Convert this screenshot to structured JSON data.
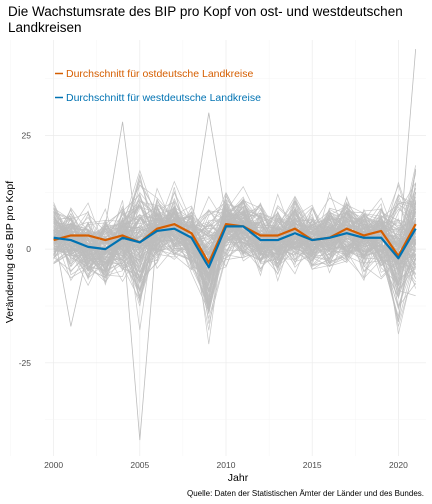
{
  "chart_data": {
    "type": "line",
    "title": "Die Wachstumsrate des BIP pro Kopf von ost- und westdeutschen Landkreisen",
    "xlabel": "Jahr",
    "ylabel": "Veränderung des BIP pro Kopf",
    "caption": "Quelle: Daten der Statistischen Ämter der Länder und des Bundes.",
    "xlim": [
      1999.5,
      2021.6
    ],
    "ylim": [
      -45.5,
      46
    ],
    "x_ticks": [
      2000,
      2005,
      2010,
      2015,
      2020
    ],
    "y_ticks": [
      -25,
      0,
      25
    ],
    "x_tick_labels": [
      "2000",
      "2005",
      "2010",
      "2015",
      "2020"
    ],
    "y_tick_labels": [
      "-25",
      "0",
      "25"
    ],
    "grid": true,
    "legend_position": "top-left",
    "x": [
      2000,
      2001,
      2002,
      2003,
      2004,
      2005,
      2006,
      2007,
      2008,
      2009,
      2010,
      2011,
      2012,
      2013,
      2014,
      2015,
      2016,
      2017,
      2018,
      2019,
      2020,
      2021
    ],
    "series": [
      {
        "name": "Durchschnitt für ostdeutsche Landkreise",
        "color": "#d55e00",
        "values": [
          2.0,
          3.0,
          3.0,
          2.0,
          3.0,
          1.5,
          4.5,
          5.5,
          3.5,
          -3.0,
          5.5,
          5.0,
          3.0,
          3.0,
          4.5,
          2.0,
          2.5,
          4.5,
          3.0,
          4.0,
          -1.5,
          5.5
        ]
      },
      {
        "name": "Durchschnitt für westdeutsche Landkreise",
        "color": "#0072b2",
        "values": [
          2.5,
          2.0,
          0.5,
          0.0,
          2.5,
          1.5,
          4.0,
          4.5,
          2.5,
          -4.0,
          5.0,
          5.0,
          2.0,
          2.0,
          3.5,
          2.0,
          2.5,
          3.5,
          2.5,
          2.5,
          -2.0,
          4.5
        ]
      }
    ],
    "background_lines_color": "#bdbdbd"
  }
}
